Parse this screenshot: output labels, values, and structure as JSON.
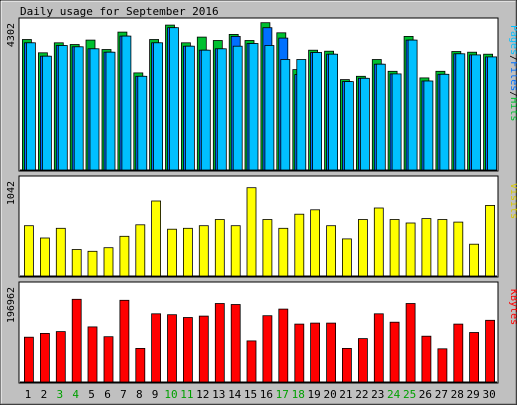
{
  "title": "Daily usage for September 2016",
  "colors": {
    "background": "#c0c0c0",
    "panel": "#ffffff",
    "border": "#000000",
    "hits": "#00c030",
    "files": "#0070ff",
    "pages": "#00c0ff",
    "visits": "#ffff00",
    "kbytes": "#ff0000",
    "weekday_label": "#000000",
    "weekend_label": "#00a000"
  },
  "legend": {
    "top": [
      {
        "text": "Pages",
        "color": "#00c0ff"
      },
      {
        "text": "/",
        "color": "#000000"
      },
      {
        "text": "Files",
        "color": "#0070ff"
      },
      {
        "text": "/",
        "color": "#000000"
      },
      {
        "text": "Hits",
        "color": "#00c030"
      }
    ],
    "middle": {
      "text": "Visits",
      "color": "#d8c800"
    },
    "bottom": {
      "text": "KBytes",
      "color": "#ff0000"
    }
  },
  "chart_data": {
    "type": "bar",
    "title": "Daily usage for September 2016",
    "categories": [
      "1",
      "2",
      "3",
      "4",
      "5",
      "6",
      "7",
      "8",
      "9",
      "10",
      "11",
      "12",
      "13",
      "14",
      "15",
      "16",
      "17",
      "18",
      "19",
      "20",
      "21",
      "22",
      "23",
      "24",
      "25",
      "26",
      "27",
      "28",
      "29",
      "30"
    ],
    "weekend_days": [
      "3",
      "4",
      "10",
      "11",
      "17",
      "18",
      "24",
      "25"
    ],
    "panels": [
      {
        "name": "hits-files-pages",
        "ymax_label": "4302",
        "ylim": [
          0,
          4302
        ],
        "series": [
          {
            "name": "Hits",
            "color": "#00c030",
            "values": [
              3900,
              3500,
              3800,
              3750,
              3880,
              3600,
              4120,
              2900,
              3900,
              4330,
              3800,
              3970,
              3870,
              4050,
              3870,
              4400,
              4100,
              3000,
              3580,
              3550,
              2700,
              2800,
              3300,
              2950,
              3990,
              2750,
              2950,
              3540,
              3520,
              3460
            ]
          },
          {
            "name": "Files",
            "color": "#0070ff",
            "values": [
              3800,
              3400,
              3720,
              3680,
              3620,
              3520,
              4000,
              2800,
              3800,
              4250,
              3700,
              3580,
              3620,
              3990,
              3780,
              4250,
              3940,
              2850,
              3510,
              3460,
              2640,
              2740,
              3160,
              2870,
              3880,
              2660,
              2860,
              3470,
              3440,
              3380
            ]
          },
          {
            "name": "Pages",
            "color": "#00c0ff",
            "values": [
              3800,
              3400,
              3720,
              3680,
              3620,
              3520,
              4000,
              2800,
              3800,
              4250,
              3700,
              3580,
              3620,
              3700,
              3780,
              3720,
              3300,
              3300,
              3510,
              3460,
              2640,
              2740,
              3160,
              2870,
              3880,
              2660,
              2860,
              3470,
              3440,
              3380
            ]
          }
        ]
      },
      {
        "name": "visits",
        "ymax_label": "1042",
        "ylim": [
          0,
          1042
        ],
        "series": [
          {
            "name": "Visits",
            "color": "#ffff00",
            "values": [
              570,
              430,
              540,
              300,
              280,
              320,
              450,
              580,
              850,
              530,
              540,
              570,
              640,
              570,
              1000,
              640,
              540,
              700,
              750,
              570,
              420,
              640,
              770,
              640,
              600,
              650,
              640,
              610,
              360,
              800
            ]
          }
        ]
      },
      {
        "name": "kbytes",
        "ymax_label": "196962",
        "ylim": [
          0,
          196962
        ],
        "series": [
          {
            "name": "KBytes",
            "color": "#ff0000",
            "values": [
              96000,
              104000,
              108000,
              177000,
              118000,
              97000,
              175000,
              72000,
              146000,
              144000,
              138000,
              141000,
              168000,
              166000,
              88000,
              142000,
              156000,
              124000,
              126000,
              126000,
              72000,
              93000,
              146000,
              128000,
              168000,
              98000,
              71000,
              124000,
              106000,
              132000
            ]
          }
        ]
      }
    ]
  }
}
